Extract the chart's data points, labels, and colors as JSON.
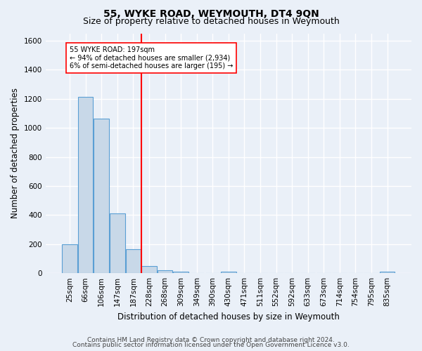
{
  "title": "55, WYKE ROAD, WEYMOUTH, DT4 9QN",
  "subtitle": "Size of property relative to detached houses in Weymouth",
  "xlabel": "Distribution of detached houses by size in Weymouth",
  "ylabel": "Number of detached properties",
  "footnote1": "Contains HM Land Registry data © Crown copyright and database right 2024.",
  "footnote2": "Contains public sector information licensed under the Open Government Licence v3.0.",
  "categories": [
    "25sqm",
    "66sqm",
    "106sqm",
    "147sqm",
    "187sqm",
    "228sqm",
    "268sqm",
    "309sqm",
    "349sqm",
    "390sqm",
    "430sqm",
    "471sqm",
    "511sqm",
    "552sqm",
    "592sqm",
    "633sqm",
    "673sqm",
    "714sqm",
    "754sqm",
    "795sqm",
    "835sqm"
  ],
  "values": [
    200,
    1215,
    1065,
    410,
    165,
    50,
    22,
    12,
    0,
    0,
    10,
    0,
    0,
    0,
    0,
    0,
    0,
    0,
    0,
    0,
    10
  ],
  "bar_color": "#c8d8e8",
  "bar_edge_color": "#5a9fd4",
  "vline_x": 4.5,
  "vline_color": "red",
  "annotation_text": "55 WYKE ROAD: 197sqm\n← 94% of detached houses are smaller (2,934)\n6% of semi-detached houses are larger (195) →",
  "annotation_box_color": "white",
  "annotation_box_edge_color": "red",
  "ylim": [
    0,
    1650
  ],
  "yticks": [
    0,
    200,
    400,
    600,
    800,
    1000,
    1200,
    1400,
    1600
  ],
  "bg_color": "#eaf0f8",
  "grid_color": "white",
  "title_fontsize": 10,
  "subtitle_fontsize": 9,
  "label_fontsize": 8.5,
  "tick_fontsize": 7.5,
  "footnote_fontsize": 6.5
}
